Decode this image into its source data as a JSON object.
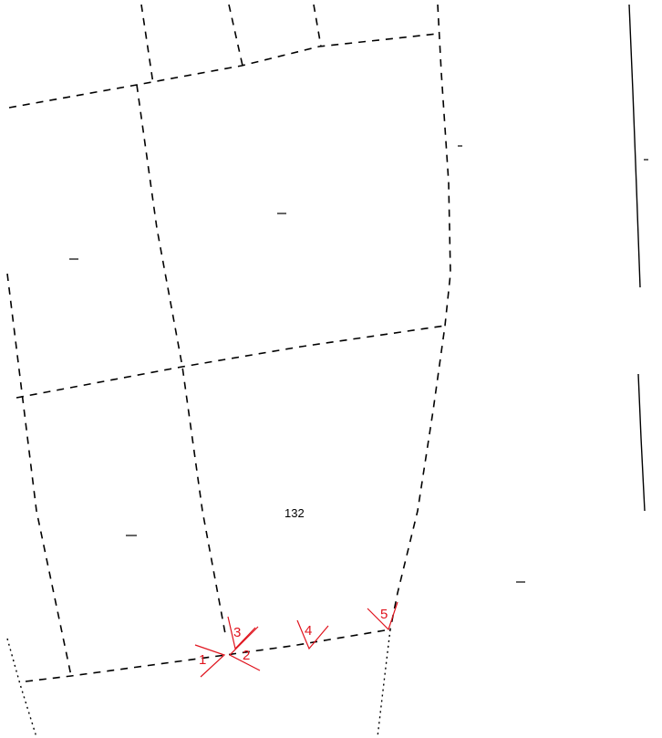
{
  "parcel_label": "132",
  "markers": [
    {
      "id": "marker-1",
      "label": "1"
    },
    {
      "id": "marker-2",
      "label": "2"
    },
    {
      "id": "marker-3",
      "label": "3"
    },
    {
      "id": "marker-4",
      "label": "4"
    },
    {
      "id": "marker-5",
      "label": "5"
    }
  ],
  "colors": {
    "background": "#ffffff",
    "linework": "#000000",
    "markers": "#e0141e"
  }
}
